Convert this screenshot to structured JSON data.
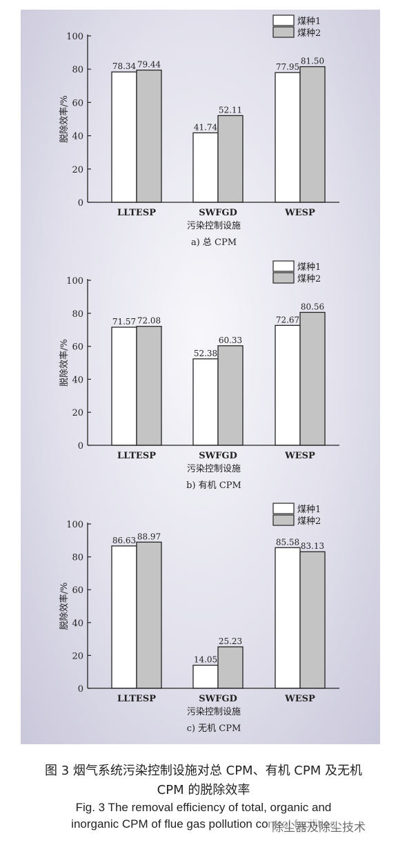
{
  "figure": {
    "caption_cn_line1": "图 3  烟气系统污染控制设施对总 CPM、有机 CPM 及无机",
    "caption_cn_line2": "CPM 的脱除效率",
    "caption_en_line1": "Fig. 3   The removal efficiency of total, organic and",
    "caption_en_line2": "inorganic CPM of flue gas pollution control facilities",
    "watermark": "除尘器及除尘技术"
  },
  "chart_data": [
    {
      "type": "bar",
      "subtitle": "a) 总 CPM",
      "xlabel": "污染控制设施",
      "ylabel": "脱除效率/%",
      "categories": [
        "LLTESP",
        "SWFGD",
        "WESP"
      ],
      "ylim": [
        0,
        100
      ],
      "yticks": [
        0,
        20,
        40,
        60,
        80,
        100
      ],
      "legend_position": "top-right",
      "series": [
        {
          "name": "煤种1",
          "values": [
            78.34,
            41.74,
            77.95
          ],
          "color": "#ffffff"
        },
        {
          "name": "煤种2",
          "values": [
            79.44,
            52.11,
            81.5
          ],
          "color": "#c4c4c4"
        }
      ],
      "data_labels": [
        [
          "78.34",
          "41.74",
          "77.95"
        ],
        [
          "79.44",
          "52.11",
          "81.50"
        ]
      ]
    },
    {
      "type": "bar",
      "subtitle": "b) 有机 CPM",
      "xlabel": "污染控制设施",
      "ylabel": "脱除效率/%",
      "categories": [
        "LLTESP",
        "SWFGD",
        "WESP"
      ],
      "ylim": [
        0,
        100
      ],
      "yticks": [
        0,
        20,
        40,
        60,
        80,
        100
      ],
      "legend_position": "top-right",
      "series": [
        {
          "name": "煤种1",
          "values": [
            71.57,
            52.38,
            72.67
          ],
          "color": "#ffffff"
        },
        {
          "name": "煤种2",
          "values": [
            72.08,
            60.33,
            80.56
          ],
          "color": "#c4c4c4"
        }
      ],
      "data_labels": [
        [
          "71.57",
          "52.38",
          "72.67"
        ],
        [
          "72.08",
          "60.33",
          "80.56"
        ]
      ]
    },
    {
      "type": "bar",
      "subtitle": "c) 无机 CPM",
      "xlabel": "污染控制设施",
      "ylabel": "脱除效率/%",
      "categories": [
        "LLTESP",
        "SWFGD",
        "WESP"
      ],
      "ylim": [
        0,
        100
      ],
      "yticks": [
        0,
        20,
        40,
        60,
        80,
        100
      ],
      "legend_position": "top-right",
      "series": [
        {
          "name": "煤种1",
          "values": [
            86.63,
            14.05,
            85.58
          ],
          "color": "#ffffff"
        },
        {
          "name": "煤种2",
          "values": [
            88.97,
            25.23,
            83.13
          ],
          "color": "#c4c4c4"
        }
      ],
      "data_labels": [
        [
          "86.63",
          "14.05",
          "85.58"
        ],
        [
          "88.97",
          "25.23",
          "83.13"
        ]
      ]
    }
  ]
}
